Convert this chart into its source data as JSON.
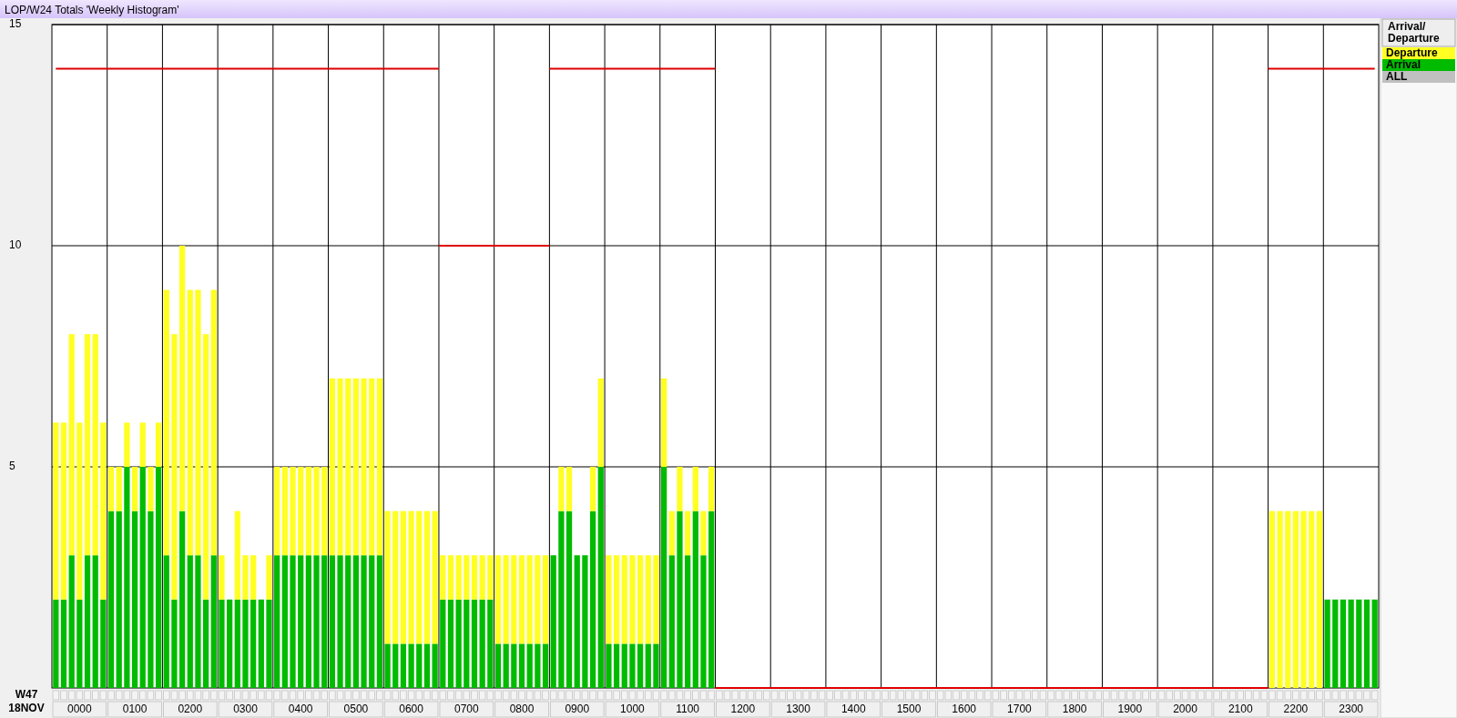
{
  "chart_data": {
    "type": "bar",
    "title": "LOP/W24 Totals 'Weekly Histogram'",
    "xlabel": "W47\n18NOV",
    "legend_title": "Arrival/Departure",
    "legend": "top right",
    "stacked": true,
    "grid": true,
    "ylim": [
      0,
      15
    ],
    "yticks": [
      5,
      10,
      15
    ],
    "annotations": [
      "ALL"
    ],
    "categories": [
      null,
      null,
      null,
      "0000",
      null,
      null,
      null,
      null,
      null,
      null,
      "0100",
      null,
      null,
      null,
      null,
      null,
      null,
      "0200",
      null,
      null,
      null,
      null,
      null,
      null,
      "0300",
      null,
      null,
      null,
      null,
      null,
      null,
      "0400",
      null,
      null,
      null,
      null,
      null,
      null,
      "0500",
      null,
      null,
      null,
      null,
      null,
      null,
      "0600",
      null,
      null,
      null,
      null,
      null,
      null,
      "0700",
      null,
      null,
      null,
      null,
      null,
      null,
      "0800",
      null,
      null,
      null,
      null,
      null,
      null,
      "0900",
      null,
      null,
      null,
      null,
      null,
      null,
      "1000",
      null,
      null,
      null,
      null,
      null,
      null,
      "1100",
      null,
      null,
      null,
      null,
      null,
      null,
      "1200",
      null,
      null,
      null,
      null,
      null,
      null,
      "1300",
      null,
      null,
      null,
      null,
      null,
      null,
      "1400",
      null,
      null,
      null,
      null,
      null,
      null,
      "1500",
      null,
      null,
      null,
      null,
      null,
      null,
      "1600",
      null,
      null,
      null,
      null,
      null,
      null,
      "1700",
      null,
      null,
      null,
      null,
      null,
      null,
      "1800",
      null,
      null,
      null,
      null,
      null,
      null,
      "1900",
      null,
      null,
      null,
      null,
      null,
      null,
      "2000",
      null,
      null,
      null,
      null,
      null,
      null,
      "2100",
      null,
      null,
      null,
      null,
      null,
      null,
      "2200",
      null,
      null,
      null,
      null,
      null,
      null,
      "2300",
      null,
      null,
      null
    ],
    "series": [
      {
        "name": "Arrival",
        "color": "#00bb00",
        "values": [
          2,
          2,
          3,
          2,
          3,
          3,
          2,
          4,
          4,
          5,
          4,
          5,
          4,
          5,
          3,
          2,
          4,
          3,
          3,
          2,
          3,
          2,
          2,
          2,
          2,
          2,
          2,
          2,
          3,
          3,
          3,
          3,
          3,
          3,
          3,
          3,
          3,
          3,
          3,
          3,
          3,
          3,
          1,
          1,
          1,
          1,
          1,
          1,
          1,
          2,
          2,
          2,
          2,
          2,
          2,
          2,
          1,
          1,
          1,
          1,
          1,
          1,
          1,
          3,
          4,
          4,
          3,
          3,
          4,
          5,
          1,
          1,
          1,
          1,
          1,
          1,
          1,
          5,
          3,
          4,
          3,
          4,
          3,
          4,
          null,
          null,
          null,
          null,
          null,
          null,
          null,
          null,
          null,
          null,
          null,
          null,
          null,
          null,
          null,
          null,
          null,
          null,
          null,
          null,
          null,
          null,
          null,
          null,
          null,
          null,
          null,
          null,
          null,
          null,
          null,
          null,
          null,
          null,
          null,
          null,
          null,
          null,
          null,
          null,
          null,
          null,
          null,
          null,
          null,
          null,
          null,
          null,
          null,
          null,
          null,
          null,
          null,
          null,
          null,
          null,
          null,
          null,
          null,
          null,
          null,
          null,
          null,
          null,
          null,
          null,
          null,
          null,
          null,
          null,
          0,
          0,
          0,
          0,
          0,
          0,
          0,
          2,
          2,
          2,
          2,
          2,
          2,
          2
        ]
      },
      {
        "name": "Departure",
        "color": "#ffff22",
        "values": [
          4,
          4,
          5,
          4,
          5,
          5,
          4,
          1,
          1,
          1,
          1,
          1,
          1,
          1,
          6,
          6,
          6,
          6,
          6,
          6,
          6,
          1,
          0,
          2,
          1,
          1,
          0,
          1,
          2,
          2,
          2,
          2,
          2,
          2,
          2,
          4,
          4,
          4,
          4,
          4,
          4,
          4,
          3,
          3,
          3,
          3,
          3,
          3,
          3,
          1,
          1,
          1,
          1,
          1,
          1,
          1,
          2,
          2,
          2,
          2,
          2,
          2,
          2,
          0,
          1,
          1,
          0,
          0,
          1,
          2,
          2,
          2,
          2,
          2,
          2,
          2,
          2,
          2,
          1,
          1,
          1,
          1,
          1,
          1,
          null,
          null,
          null,
          null,
          null,
          null,
          null,
          null,
          null,
          null,
          null,
          null,
          null,
          null,
          null,
          null,
          null,
          null,
          null,
          null,
          null,
          null,
          null,
          null,
          null,
          null,
          null,
          null,
          null,
          null,
          null,
          null,
          null,
          null,
          null,
          null,
          null,
          null,
          null,
          null,
          null,
          null,
          null,
          null,
          null,
          null,
          null,
          null,
          null,
          null,
          null,
          null,
          null,
          null,
          null,
          null,
          null,
          null,
          null,
          null,
          null,
          null,
          null,
          null,
          null,
          null,
          null,
          null,
          null,
          null,
          4,
          4,
          4,
          4,
          4,
          4,
          4,
          0,
          0,
          0,
          0,
          0,
          0,
          0
        ]
      },
      {
        "type": "step",
        "color": "#e00000",
        "values": [
          14,
          14,
          14,
          14,
          14,
          14,
          14,
          14,
          14,
          14,
          14,
          14,
          14,
          14,
          14,
          14,
          14,
          14,
          14,
          14,
          14,
          14,
          14,
          14,
          14,
          14,
          14,
          14,
          14,
          14,
          14,
          14,
          14,
          14,
          14,
          14,
          14,
          14,
          14,
          14,
          14,
          14,
          14,
          14,
          14,
          14,
          14,
          14,
          14,
          10,
          10,
          10,
          10,
          10,
          10,
          10,
          10,
          10,
          10,
          10,
          10,
          10,
          10,
          14,
          14,
          14,
          14,
          14,
          14,
          14,
          14,
          14,
          14,
          14,
          14,
          14,
          14,
          14,
          14,
          14,
          14,
          14,
          14,
          14,
          0,
          0,
          0,
          0,
          0,
          0,
          0,
          0,
          0,
          0,
          0,
          0,
          0,
          0,
          0,
          0,
          0,
          0,
          0,
          0,
          0,
          0,
          0,
          0,
          0,
          0,
          0,
          0,
          0,
          0,
          0,
          0,
          0,
          0,
          0,
          0,
          0,
          0,
          0,
          0,
          0,
          0,
          0,
          0,
          0,
          0,
          0,
          0,
          0,
          0,
          0,
          0,
          0,
          0,
          0,
          0,
          0,
          0,
          0,
          0,
          0,
          0,
          0,
          0,
          0,
          0,
          0,
          0,
          0,
          0,
          14,
          14,
          14,
          14,
          14,
          14,
          14,
          14,
          14,
          14,
          14,
          14,
          14,
          14
        ]
      }
    ]
  }
}
